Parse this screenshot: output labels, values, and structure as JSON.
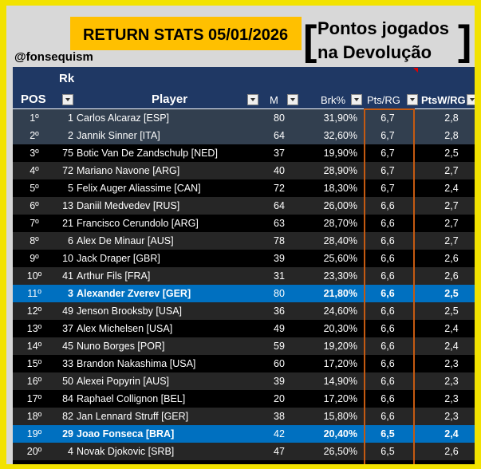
{
  "header": {
    "title": "RETURN STATS 05/01/2026",
    "caption_line1": "Pontos jogados",
    "caption_line2": "na Devolução",
    "handle": "@fonsequism",
    "bracket_open": "[",
    "bracket_close": "]"
  },
  "table": {
    "columns": {
      "rk": "Rk",
      "pos": "POS",
      "player": "Player",
      "m": "M",
      "brk": "Brk%",
      "pts": "Pts/RG",
      "ptsw": "PtsW/RG"
    },
    "row_colors": {
      "top": "#323f4f",
      "dark": "#000000",
      "mid": "#262626",
      "highlight": "#0070c0"
    },
    "rows": [
      {
        "pos": "1º",
        "rk": "1",
        "player": "Carlos Alcaraz [ESP]",
        "m": "80",
        "brk": "31,90%",
        "pts": "6,7",
        "ptsw": "2,8",
        "style": "top"
      },
      {
        "pos": "2º",
        "rk": "2",
        "player": "Jannik Sinner [ITA]",
        "m": "64",
        "brk": "32,60%",
        "pts": "6,7",
        "ptsw": "2,8",
        "style": "top"
      },
      {
        "pos": "3º",
        "rk": "75",
        "player": "Botic Van De Zandschulp [NED]",
        "m": "37",
        "brk": "19,90%",
        "pts": "6,7",
        "ptsw": "2,5",
        "style": "dark"
      },
      {
        "pos": "4º",
        "rk": "72",
        "player": "Mariano Navone [ARG]",
        "m": "40",
        "brk": "28,90%",
        "pts": "6,7",
        "ptsw": "2,7",
        "style": "mid"
      },
      {
        "pos": "5º",
        "rk": "5",
        "player": "Felix Auger Aliassime [CAN]",
        "m": "72",
        "brk": "18,30%",
        "pts": "6,7",
        "ptsw": "2,4",
        "style": "dark"
      },
      {
        "pos": "6º",
        "rk": "13",
        "player": "Daniil Medvedev [RUS]",
        "m": "64",
        "brk": "26,00%",
        "pts": "6,6",
        "ptsw": "2,7",
        "style": "mid"
      },
      {
        "pos": "7º",
        "rk": "21",
        "player": "Francisco Cerundolo [ARG]",
        "m": "63",
        "brk": "28,70%",
        "pts": "6,6",
        "ptsw": "2,7",
        "style": "dark"
      },
      {
        "pos": "8º",
        "rk": "6",
        "player": "Alex De Minaur [AUS]",
        "m": "78",
        "brk": "28,40%",
        "pts": "6,6",
        "ptsw": "2,7",
        "style": "mid"
      },
      {
        "pos": "9º",
        "rk": "10",
        "player": "Jack Draper [GBR]",
        "m": "39",
        "brk": "25,60%",
        "pts": "6,6",
        "ptsw": "2,6",
        "style": "dark"
      },
      {
        "pos": "10º",
        "rk": "41",
        "player": "Arthur Fils [FRA]",
        "m": "31",
        "brk": "23,30%",
        "pts": "6,6",
        "ptsw": "2,6",
        "style": "mid"
      },
      {
        "pos": "11º",
        "rk": "3",
        "player": "Alexander Zverev [GER]",
        "m": "80",
        "brk": "21,80%",
        "pts": "6,6",
        "ptsw": "2,5",
        "style": "highlight"
      },
      {
        "pos": "12º",
        "rk": "49",
        "player": "Jenson Brooksby [USA]",
        "m": "36",
        "brk": "24,60%",
        "pts": "6,6",
        "ptsw": "2,5",
        "style": "mid"
      },
      {
        "pos": "13º",
        "rk": "37",
        "player": "Alex Michelsen [USA]",
        "m": "49",
        "brk": "20,30%",
        "pts": "6,6",
        "ptsw": "2,4",
        "style": "dark"
      },
      {
        "pos": "14º",
        "rk": "45",
        "player": "Nuno Borges [POR]",
        "m": "59",
        "brk": "19,20%",
        "pts": "6,6",
        "ptsw": "2,4",
        "style": "mid"
      },
      {
        "pos": "15º",
        "rk": "33",
        "player": "Brandon Nakashima [USA]",
        "m": "60",
        "brk": "17,20%",
        "pts": "6,6",
        "ptsw": "2,3",
        "style": "dark"
      },
      {
        "pos": "16º",
        "rk": "50",
        "player": "Alexei Popyrin [AUS]",
        "m": "39",
        "brk": "14,90%",
        "pts": "6,6",
        "ptsw": "2,3",
        "style": "mid"
      },
      {
        "pos": "17º",
        "rk": "84",
        "player": "Raphael Collignon [BEL]",
        "m": "20",
        "brk": "17,20%",
        "pts": "6,6",
        "ptsw": "2,3",
        "style": "dark"
      },
      {
        "pos": "18º",
        "rk": "82",
        "player": "Jan Lennard Struff [GER]",
        "m": "38",
        "brk": "15,80%",
        "pts": "6,6",
        "ptsw": "2,3",
        "style": "mid"
      },
      {
        "pos": "19º",
        "rk": "29",
        "player": "Joao Fonseca [BRA]",
        "m": "42",
        "brk": "20,40%",
        "pts": "6,5",
        "ptsw": "2,4",
        "style": "highlight"
      },
      {
        "pos": "20º",
        "rk": "4",
        "player": "Novak Djokovic [SRB]",
        "m": "47",
        "brk": "26,50%",
        "pts": "6,5",
        "ptsw": "2,6",
        "style": "mid"
      }
    ]
  }
}
